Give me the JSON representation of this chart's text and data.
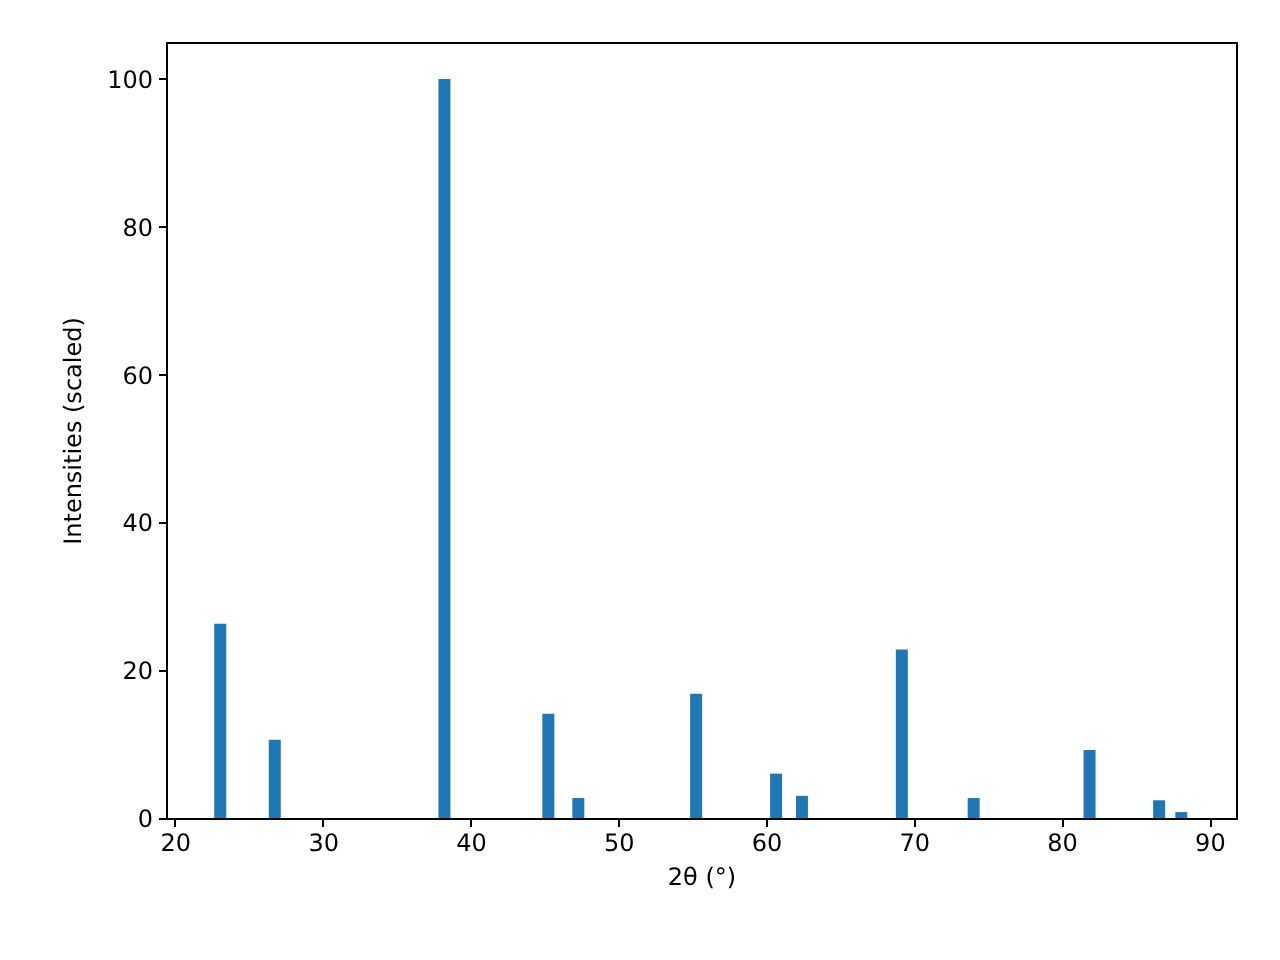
{
  "chart_data": {
    "type": "bar",
    "xlabel": "2θ (°)",
    "ylabel": "Intensities (scaled)",
    "x": [
      23.07,
      26.76,
      38.24,
      45.27,
      47.3,
      55.27,
      60.68,
      62.43,
      69.19,
      74.05,
      81.89,
      86.6,
      88.1
    ],
    "series": [
      {
        "color": "#1f77b4",
        "values": [
          26.3,
          10.6,
          100,
          14.1,
          2.7,
          16.8,
          6.0,
          3.0,
          22.8,
          2.7,
          9.2,
          2.4,
          0.8
        ]
      }
    ],
    "xlim": [
      19.4,
      91.8
    ],
    "xticks": [
      20,
      30,
      40,
      50,
      60,
      70,
      80,
      90
    ],
    "ylim": [
      0,
      105
    ],
    "yticks": [
      0,
      20,
      40,
      60,
      80,
      100
    ],
    "grid": false
  }
}
